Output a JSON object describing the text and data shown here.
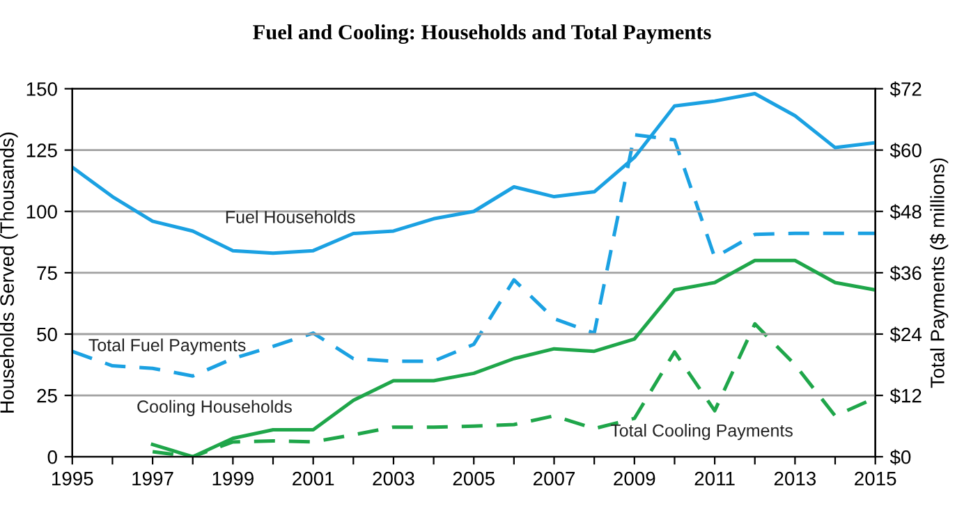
{
  "chart_data": {
    "type": "line",
    "title": "Fuel and Cooling: Households and Total Payments",
    "ylabel": "Households Served (Thousands)",
    "y2label": "Total Payments ($ millions)",
    "x": [
      1995,
      1996,
      1997,
      1998,
      1999,
      2000,
      2001,
      2002,
      2003,
      2004,
      2005,
      2006,
      2007,
      2008,
      2009,
      2010,
      2011,
      2012,
      2013,
      2014,
      2015
    ],
    "series": [
      {
        "name": "Fuel Households",
        "color": "#1ba1e2",
        "line_style": "solid",
        "values": [
          118,
          106,
          96,
          92,
          84,
          83,
          84,
          91,
          92,
          97,
          100,
          110,
          106,
          108,
          122,
          143,
          145,
          148,
          139,
          126,
          128
        ]
      },
      {
        "name": "Total Fuel Payments",
        "color": "#1ba1e2",
        "line_style": "dashed",
        "axis": "y2",
        "values": [
          20.6,
          17.8,
          17.3,
          15.8,
          19.2,
          21.6,
          24.2,
          19.2,
          18.7,
          18.7,
          22,
          34.6,
          27,
          24.2,
          63,
          62,
          39,
          43.5,
          43.7,
          43.7,
          43.7
        ]
      },
      {
        "name": "Cooling Households",
        "color": "#1fa64a",
        "line_style": "solid",
        "values": [
          null,
          null,
          5,
          0,
          7.5,
          11,
          11,
          23,
          31,
          31,
          34,
          40,
          44,
          43,
          48,
          68,
          71,
          80,
          80,
          71,
          68
        ]
      },
      {
        "name": "Total Cooling Payments",
        "color": "#1fa64a",
        "line_style": "dashed",
        "axis": "y2",
        "values": [
          null,
          null,
          1,
          0,
          2.9,
          3.1,
          2.9,
          4.3,
          5.8,
          5.8,
          6,
          6.3,
          8,
          5.5,
          7.5,
          20.5,
          9,
          26,
          18,
          8,
          11.5
        ]
      }
    ],
    "xlim": [
      1995,
      2015
    ],
    "xticks": [
      1995,
      {
        "value": 1996,
        "label": null
      },
      1997,
      {
        "value": 1998,
        "label": null
      },
      1999,
      {
        "value": 2000,
        "label": null
      },
      2001,
      {
        "value": 2002,
        "label": null
      },
      2003,
      {
        "value": 2004,
        "label": null
      },
      2005,
      {
        "value": 2006,
        "label": null
      },
      2007,
      {
        "value": 2008,
        "label": null
      },
      2009,
      {
        "value": 2010,
        "label": null
      },
      2011,
      {
        "value": 2012,
        "label": null
      },
      2013,
      {
        "value": 2014,
        "label": null
      },
      2015
    ],
    "ylim": [
      0,
      150
    ],
    "yticks": [
      0,
      25,
      50,
      75,
      100,
      125,
      150
    ],
    "y2lim": [
      0,
      72
    ],
    "y2ticks": [
      {
        "value": 0,
        "label": "$0"
      },
      {
        "value": 12,
        "label": "$12"
      },
      {
        "value": 24,
        "label": "$24"
      },
      {
        "value": 36,
        "label": "$36"
      },
      {
        "value": 48,
        "label": "$48"
      },
      {
        "value": 60,
        "label": "$60"
      },
      {
        "value": 72,
        "label": "$72"
      }
    ],
    "grid": "y",
    "legend": false
  }
}
